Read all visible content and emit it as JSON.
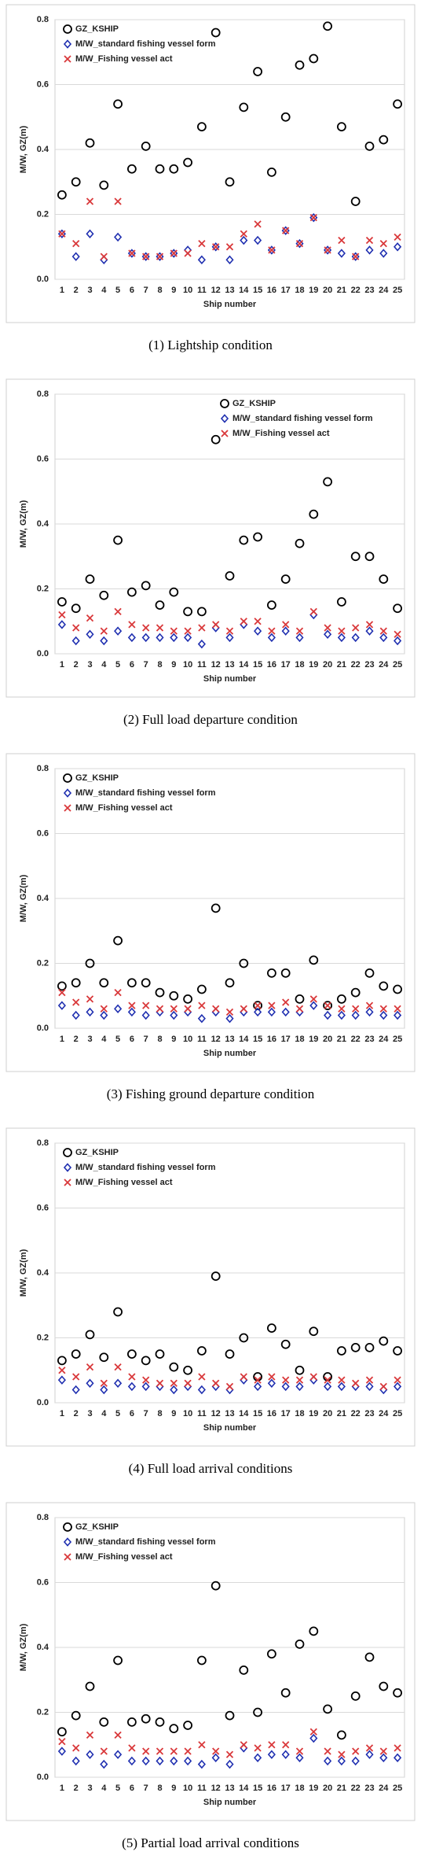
{
  "chart_data": [
    {
      "type": "scatter",
      "caption": "(1) Lightship condition",
      "x_label": "Ship number",
      "y_label": "M/W, GZ(m)",
      "categories": [
        "1",
        "2",
        "3",
        "4",
        "5",
        "6",
        "7",
        "8",
        "9",
        "10",
        "11",
        "12",
        "13",
        "14",
        "15",
        "16",
        "17",
        "18",
        "19",
        "20",
        "21",
        "22",
        "23",
        "24",
        "25"
      ],
      "ylim": [
        0,
        0.8
      ],
      "yticks": [
        {
          "value": 0,
          "label": "0.0"
        },
        0.2,
        0.4,
        0.6,
        0.8
      ],
      "legend": "upper-left",
      "series": [
        {
          "name": "GZ_KSHIP",
          "color": "#000000",
          "marker": "circle",
          "values": [
            0.26,
            0.3,
            0.42,
            0.29,
            0.54,
            0.34,
            0.41,
            0.34,
            0.34,
            0.36,
            0.47,
            0.76,
            0.3,
            0.53,
            0.64,
            0.33,
            0.5,
            0.66,
            0.68,
            0.78,
            0.47,
            0.24,
            0.41,
            0.43,
            0.54
          ]
        },
        {
          "name": "M/W_standard fishing vessel form",
          "color": "#1f2fb0",
          "marker": "diamond",
          "values": [
            0.14,
            0.07,
            0.14,
            0.06,
            0.13,
            0.08,
            0.07,
            0.07,
            0.08,
            0.09,
            0.06,
            0.1,
            0.06,
            0.12,
            0.12,
            0.09,
            0.15,
            0.11,
            0.19,
            0.09,
            0.08,
            0.07,
            0.09,
            0.08,
            0.1
          ]
        },
        {
          "name": "M/W_Fishing vessel act",
          "color": "#d9383a",
          "marker": "x",
          "values": [
            0.14,
            0.11,
            0.24,
            0.07,
            0.24,
            0.08,
            0.07,
            0.07,
            0.08,
            0.08,
            0.11,
            0.1,
            0.1,
            0.14,
            0.17,
            0.09,
            0.15,
            0.11,
            0.19,
            0.09,
            0.12,
            0.07,
            0.12,
            0.11,
            0.13
          ]
        }
      ]
    },
    {
      "type": "scatter",
      "caption": "(2) Full load departure condition",
      "x_label": "Ship number",
      "y_label": "M/W, GZ(m)",
      "categories": [
        "1",
        "2",
        "3",
        "4",
        "5",
        "6",
        "7",
        "8",
        "9",
        "10",
        "11",
        "12",
        "13",
        "14",
        "15",
        "16",
        "17",
        "18",
        "19",
        "20",
        "21",
        "22",
        "23",
        "24",
        "25"
      ],
      "ylim": [
        0,
        0.8
      ],
      "yticks": [
        {
          "value": 0,
          "label": "0.0"
        },
        0.2,
        0.4,
        0.6,
        0.8
      ],
      "legend": "upper-right",
      "series": [
        {
          "name": "GZ_KSHIP",
          "color": "#000000",
          "marker": "circle",
          "values": [
            0.16,
            0.14,
            0.23,
            0.18,
            0.35,
            0.19,
            0.21,
            0.15,
            0.19,
            0.13,
            0.13,
            0.66,
            0.24,
            0.35,
            0.36,
            0.15,
            0.23,
            0.34,
            0.43,
            0.53,
            0.16,
            0.3,
            0.3,
            0.23,
            0.14
          ]
        },
        {
          "name": "M/W_standard fishing vessel form",
          "color": "#1f2fb0",
          "marker": "diamond",
          "values": [
            0.09,
            0.04,
            0.06,
            0.04,
            0.07,
            0.05,
            0.05,
            0.05,
            0.05,
            0.05,
            0.03,
            0.08,
            0.05,
            0.09,
            0.07,
            0.05,
            0.07,
            0.05,
            0.12,
            0.06,
            0.05,
            0.05,
            0.07,
            0.05,
            0.04
          ]
        },
        {
          "name": "M/W_Fishing vessel act",
          "color": "#d9383a",
          "marker": "x",
          "values": [
            0.12,
            0.08,
            0.11,
            0.07,
            0.13,
            0.09,
            0.08,
            0.08,
            0.07,
            0.07,
            0.08,
            0.09,
            0.07,
            0.1,
            0.1,
            0.07,
            0.09,
            0.07,
            0.13,
            0.08,
            0.07,
            0.08,
            0.09,
            0.07,
            0.06
          ]
        }
      ]
    },
    {
      "type": "scatter",
      "caption": "(3) Fishing ground departure condition",
      "x_label": "Ship number",
      "y_label": "M/W, GZ(m)",
      "categories": [
        "1",
        "2",
        "3",
        "4",
        "5",
        "6",
        "7",
        "8",
        "9",
        "10",
        "11",
        "12",
        "13",
        "14",
        "15",
        "16",
        "17",
        "18",
        "19",
        "20",
        "21",
        "22",
        "23",
        "24",
        "25"
      ],
      "ylim": [
        0,
        0.8
      ],
      "yticks": [
        {
          "value": 0,
          "label": "0.0"
        },
        0.2,
        0.4,
        0.6,
        0.8
      ],
      "legend": "upper-left",
      "series": [
        {
          "name": "GZ_KSHIP",
          "color": "#000000",
          "marker": "circle",
          "values": [
            0.13,
            0.14,
            0.2,
            0.14,
            0.27,
            0.14,
            0.14,
            0.11,
            0.1,
            0.09,
            0.12,
            0.37,
            0.14,
            0.2,
            0.07,
            0.17,
            0.17,
            0.09,
            0.21,
            0.07,
            0.09,
            0.11,
            0.17,
            0.13,
            0.12
          ]
        },
        {
          "name": "M/W_standard fishing vessel form",
          "color": "#1f2fb0",
          "marker": "diamond",
          "values": [
            0.07,
            0.04,
            0.05,
            0.04,
            0.06,
            0.05,
            0.04,
            0.05,
            0.04,
            0.05,
            0.03,
            0.05,
            0.03,
            0.05,
            0.05,
            0.05,
            0.05,
            0.05,
            0.07,
            0.04,
            0.04,
            0.04,
            0.05,
            0.04,
            0.04
          ]
        },
        {
          "name": "M/W_Fishing vessel act",
          "color": "#d9383a",
          "marker": "x",
          "values": [
            0.11,
            0.08,
            0.09,
            0.06,
            0.11,
            0.07,
            0.07,
            0.06,
            0.06,
            0.06,
            0.07,
            0.06,
            0.05,
            0.06,
            0.07,
            0.07,
            0.08,
            0.06,
            0.09,
            0.07,
            0.06,
            0.06,
            0.07,
            0.06,
            0.06
          ]
        }
      ]
    },
    {
      "type": "scatter",
      "caption": "(4) Full load arrival conditions",
      "x_label": "Ship number",
      "y_label": "M/W, GZ(m)",
      "categories": [
        "1",
        "2",
        "3",
        "4",
        "5",
        "6",
        "7",
        "8",
        "9",
        "10",
        "11",
        "12",
        "13",
        "14",
        "15",
        "16",
        "17",
        "18",
        "19",
        "20",
        "21",
        "22",
        "23",
        "24",
        "25"
      ],
      "ylim": [
        0,
        0.8
      ],
      "yticks": [
        {
          "value": 0,
          "label": "0.0"
        },
        0.2,
        0.4,
        0.6,
        0.8
      ],
      "legend": "upper-left",
      "series": [
        {
          "name": "GZ_KSHIP",
          "color": "#000000",
          "marker": "circle",
          "values": [
            0.13,
            0.15,
            0.21,
            0.14,
            0.28,
            0.15,
            0.13,
            0.15,
            0.11,
            0.1,
            0.16,
            0.39,
            0.15,
            0.2,
            0.08,
            0.23,
            0.18,
            0.1,
            0.22,
            0.08,
            0.16,
            0.17,
            0.17,
            0.19,
            0.16
          ]
        },
        {
          "name": "M/W_standard fishing vessel form",
          "color": "#1f2fb0",
          "marker": "diamond",
          "values": [
            0.07,
            0.04,
            0.06,
            0.04,
            0.06,
            0.05,
            0.05,
            0.05,
            0.04,
            0.05,
            0.04,
            0.05,
            0.04,
            0.07,
            0.05,
            0.06,
            0.05,
            0.05,
            0.07,
            0.05,
            0.05,
            0.05,
            0.05,
            0.04,
            0.05
          ]
        },
        {
          "name": "M/W_Fishing vessel act",
          "color": "#d9383a",
          "marker": "x",
          "values": [
            0.1,
            0.08,
            0.11,
            0.06,
            0.11,
            0.08,
            0.07,
            0.06,
            0.06,
            0.06,
            0.08,
            0.06,
            0.05,
            0.08,
            0.07,
            0.08,
            0.07,
            0.07,
            0.08,
            0.07,
            0.07,
            0.06,
            0.07,
            0.05,
            0.07
          ]
        }
      ]
    },
    {
      "type": "scatter",
      "caption": "(5) Partial load arrival conditions",
      "x_label": "Ship number",
      "y_label": "M/W, GZ(m)",
      "categories": [
        "1",
        "2",
        "3",
        "4",
        "5",
        "6",
        "7",
        "8",
        "9",
        "10",
        "11",
        "12",
        "13",
        "14",
        "15",
        "16",
        "17",
        "18",
        "19",
        "20",
        "21",
        "22",
        "23",
        "24",
        "25"
      ],
      "ylim": [
        0,
        0.8
      ],
      "yticks": [
        {
          "value": 0,
          "label": "0.0"
        },
        0.2,
        0.4,
        0.6,
        0.8
      ],
      "legend": "upper-left",
      "series": [
        {
          "name": "GZ_KSHIP",
          "color": "#000000",
          "marker": "circle",
          "values": [
            0.14,
            0.19,
            0.28,
            0.17,
            0.36,
            0.17,
            0.18,
            0.17,
            0.15,
            0.16,
            0.36,
            0.59,
            0.19,
            0.33,
            0.2,
            0.38,
            0.26,
            0.41,
            0.45,
            0.21,
            0.13,
            0.25,
            0.37,
            0.28,
            0.26
          ]
        },
        {
          "name": "M/W_standard fishing vessel form",
          "color": "#1f2fb0",
          "marker": "diamond",
          "values": [
            0.08,
            0.05,
            0.07,
            0.04,
            0.07,
            0.05,
            0.05,
            0.05,
            0.05,
            0.05,
            0.04,
            0.06,
            0.04,
            0.09,
            0.06,
            0.07,
            0.07,
            0.06,
            0.12,
            0.05,
            0.05,
            0.05,
            0.07,
            0.06,
            0.06
          ]
        },
        {
          "name": "M/W_Fishing vessel act",
          "color": "#d9383a",
          "marker": "x",
          "values": [
            0.11,
            0.09,
            0.13,
            0.08,
            0.13,
            0.09,
            0.08,
            0.08,
            0.08,
            0.08,
            0.1,
            0.08,
            0.07,
            0.1,
            0.09,
            0.1,
            0.1,
            0.08,
            0.14,
            0.08,
            0.07,
            0.08,
            0.09,
            0.08,
            0.09
          ]
        }
      ]
    }
  ]
}
